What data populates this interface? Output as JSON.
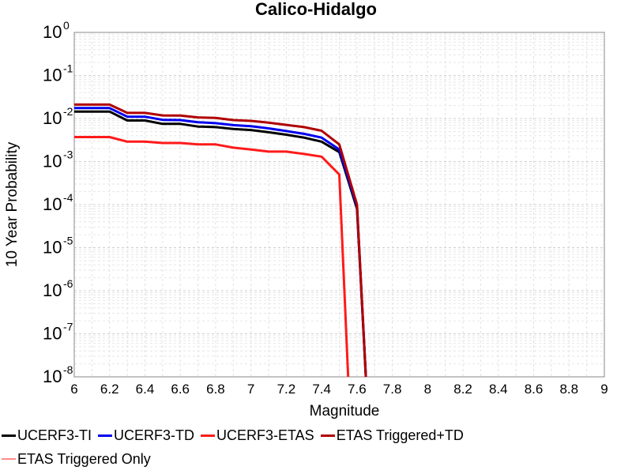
{
  "chart_data": {
    "type": "line",
    "title": "Calico-Hidalgo",
    "xlabel": "Magnitude",
    "ylabel": "10 Year Probability",
    "xlim": [
      6,
      9
    ],
    "ylim_exponent": [
      -8,
      0
    ],
    "yscale": "log",
    "grid": true,
    "legend_position": "bottom",
    "x_ticks": [
      "6",
      "6.2",
      "6.4",
      "6.6",
      "6.8",
      "7",
      "7.2",
      "7.4",
      "7.6",
      "7.8",
      "8",
      "8.2",
      "8.4",
      "8.6",
      "8.8",
      "9"
    ],
    "y_ticks": [
      {
        "base": "10",
        "exp": "0"
      },
      {
        "base": "10",
        "exp": "-1"
      },
      {
        "base": "10",
        "exp": "-2"
      },
      {
        "base": "10",
        "exp": "-3"
      },
      {
        "base": "10",
        "exp": "-4"
      },
      {
        "base": "10",
        "exp": "-5"
      },
      {
        "base": "10",
        "exp": "-6"
      },
      {
        "base": "10",
        "exp": "-7"
      },
      {
        "base": "10",
        "exp": "-8"
      }
    ],
    "series": [
      {
        "name": "UCERF3-TI",
        "color": "#000000",
        "width": 3,
        "x": [
          6.0,
          6.2,
          6.3,
          6.4,
          6.5,
          6.6,
          6.7,
          6.8,
          6.9,
          7.0,
          7.1,
          7.2,
          7.3,
          7.4,
          7.5,
          7.6,
          7.65
        ],
        "y": [
          0.0145,
          0.0145,
          0.009,
          0.009,
          0.0075,
          0.0075,
          0.0065,
          0.0063,
          0.0057,
          0.0054,
          0.0048,
          0.0042,
          0.0036,
          0.0029,
          0.00165,
          8e-05,
          1e-09
        ]
      },
      {
        "name": "UCERF3-TD",
        "color": "#0000ee",
        "width": 3,
        "x": [
          6.0,
          6.2,
          6.3,
          6.4,
          6.5,
          6.6,
          6.7,
          6.8,
          6.9,
          7.0,
          7.1,
          7.2,
          7.3,
          7.4,
          7.5,
          7.6,
          7.65
        ],
        "y": [
          0.0175,
          0.0175,
          0.011,
          0.011,
          0.0093,
          0.0092,
          0.0082,
          0.0078,
          0.007,
          0.0066,
          0.0059,
          0.0051,
          0.0044,
          0.0036,
          0.0019,
          9e-05,
          1e-09
        ]
      },
      {
        "name": "UCERF3-ETAS",
        "color": "#ff1a1a",
        "width": 3,
        "x": [
          6.0,
          6.2,
          6.3,
          6.4,
          6.5,
          6.6,
          6.7,
          6.8,
          6.9,
          7.0,
          7.1,
          7.2,
          7.3,
          7.4,
          7.5,
          7.55
        ],
        "y": [
          0.0037,
          0.0037,
          0.0029,
          0.0029,
          0.0027,
          0.0027,
          0.0025,
          0.0025,
          0.0021,
          0.0019,
          0.0017,
          0.0017,
          0.0015,
          0.0013,
          0.0005,
          1e-09
        ]
      },
      {
        "name": "ETAS Triggered+TD",
        "color": "#b00000",
        "width": 3,
        "x": [
          6.0,
          6.2,
          6.3,
          6.4,
          6.5,
          6.6,
          6.7,
          6.8,
          6.9,
          7.0,
          7.1,
          7.2,
          7.3,
          7.4,
          7.5,
          7.6,
          7.65
        ],
        "y": [
          0.021,
          0.021,
          0.0135,
          0.0135,
          0.0118,
          0.0117,
          0.0106,
          0.0103,
          0.0092,
          0.0088,
          0.008,
          0.0071,
          0.0063,
          0.0052,
          0.0025,
          0.0001,
          1e-09
        ]
      },
      {
        "name": "ETAS Triggered Only",
        "color": "#ff8a8a",
        "width": 1,
        "x": [],
        "y": []
      }
    ]
  }
}
